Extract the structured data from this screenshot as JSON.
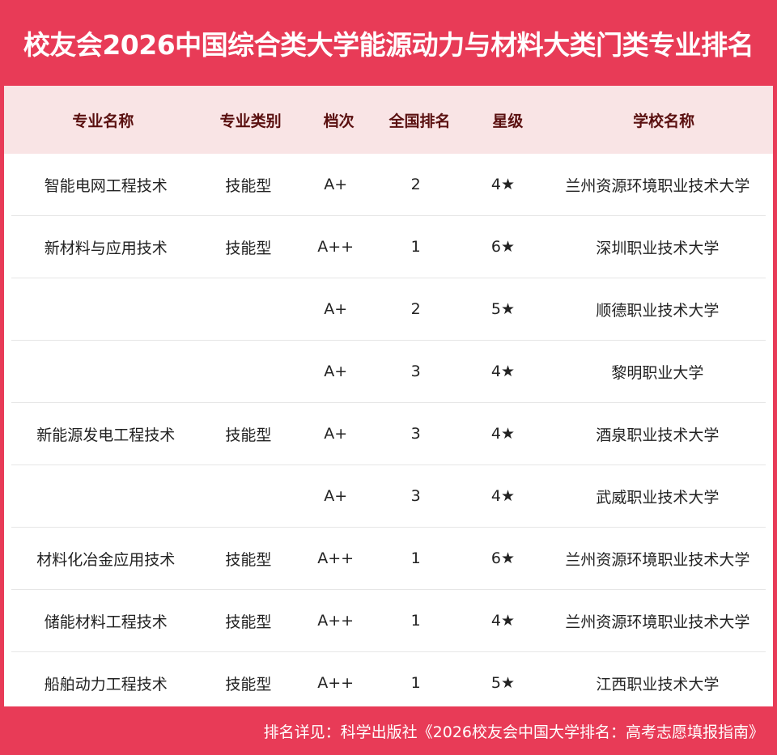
{
  "title": "校友会2026中国综合类大学能源动力与材料大类门类专业排名",
  "colors": {
    "accent": "#e83b57",
    "header_bg": "#f9e4e5",
    "header_text": "#5a1010"
  },
  "columns": [
    "专业名称",
    "专业类别",
    "档次",
    "全国排名",
    "星级",
    "学校名称"
  ],
  "rows": [
    [
      "智能电网工程技术",
      "技能型",
      "A+",
      "2",
      "4★",
      "兰州资源环境职业技术大学"
    ],
    [
      "新材料与应用技术",
      "技能型",
      "A++",
      "1",
      "6★",
      "深圳职业技术大学"
    ],
    [
      "",
      "",
      "A+",
      "2",
      "5★",
      "顺德职业技术大学"
    ],
    [
      "",
      "",
      "A+",
      "3",
      "4★",
      "黎明职业大学"
    ],
    [
      "新能源发电工程技术",
      "技能型",
      "A+",
      "3",
      "4★",
      "酒泉职业技术大学"
    ],
    [
      "",
      "",
      "A+",
      "3",
      "4★",
      "武威职业技术大学"
    ],
    [
      "材料化冶金应用技术",
      "技能型",
      "A++",
      "1",
      "6★",
      "兰州资源环境职业技术大学"
    ],
    [
      "储能材料工程技术",
      "技能型",
      "A++",
      "1",
      "4★",
      "兰州资源环境职业技术大学"
    ],
    [
      "船舶动力工程技术",
      "技能型",
      "A++",
      "1",
      "5★",
      "江西职业技术大学"
    ]
  ],
  "footer": "排名详见：科学出版社《2026校友会中国大学排名：高考志愿填报指南》"
}
